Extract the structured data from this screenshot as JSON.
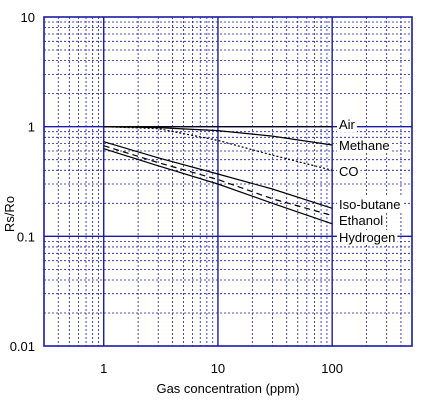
{
  "chart_data": {
    "type": "line",
    "xlabel": "Gas concentration (ppm)",
    "ylabel": "Rs/Ro",
    "xscale": "log",
    "yscale": "log",
    "xlim": [
      0.3,
      500
    ],
    "ylim": [
      0.01,
      10
    ],
    "x_ticks": [
      {
        "v": 1,
        "label": "1"
      },
      {
        "v": 10,
        "label": "10"
      },
      {
        "v": 100,
        "label": "100"
      }
    ],
    "y_ticks": [
      {
        "v": 10,
        "label": "10"
      },
      {
        "v": 1,
        "label": "1"
      },
      {
        "v": 0.1,
        "label": "0.1"
      },
      {
        "v": 0.01,
        "label": "0.01"
      }
    ],
    "grid": true,
    "colors": {
      "grid": "#1a1aa8",
      "frame": "#1a1aa8",
      "line": "#000000"
    },
    "series": [
      {
        "name": "Air",
        "style": "solid",
        "x": [
          1,
          100
        ],
        "y": [
          1.0,
          1.0
        ]
      },
      {
        "name": "Methane",
        "style": "solid",
        "x": [
          1,
          3,
          10,
          30,
          100
        ],
        "y": [
          1.0,
          0.98,
          0.92,
          0.82,
          0.68
        ]
      },
      {
        "name": "CO",
        "style": "dotted",
        "x": [
          1,
          3,
          10,
          30,
          100
        ],
        "y": [
          1.0,
          0.96,
          0.75,
          0.55,
          0.4
        ]
      },
      {
        "name": "Iso-butane",
        "style": "solid",
        "x": [
          1,
          3,
          10,
          30,
          100
        ],
        "y": [
          0.73,
          0.52,
          0.37,
          0.27,
          0.18
        ]
      },
      {
        "name": "Ethanol",
        "style": "dashed",
        "x": [
          1,
          3,
          10,
          30,
          100
        ],
        "y": [
          0.67,
          0.47,
          0.33,
          0.22,
          0.155
        ]
      },
      {
        "name": "Hydrogen",
        "style": "solid",
        "x": [
          1,
          3,
          10,
          30,
          100
        ],
        "y": [
          0.63,
          0.44,
          0.3,
          0.2,
          0.13
        ]
      }
    ]
  }
}
